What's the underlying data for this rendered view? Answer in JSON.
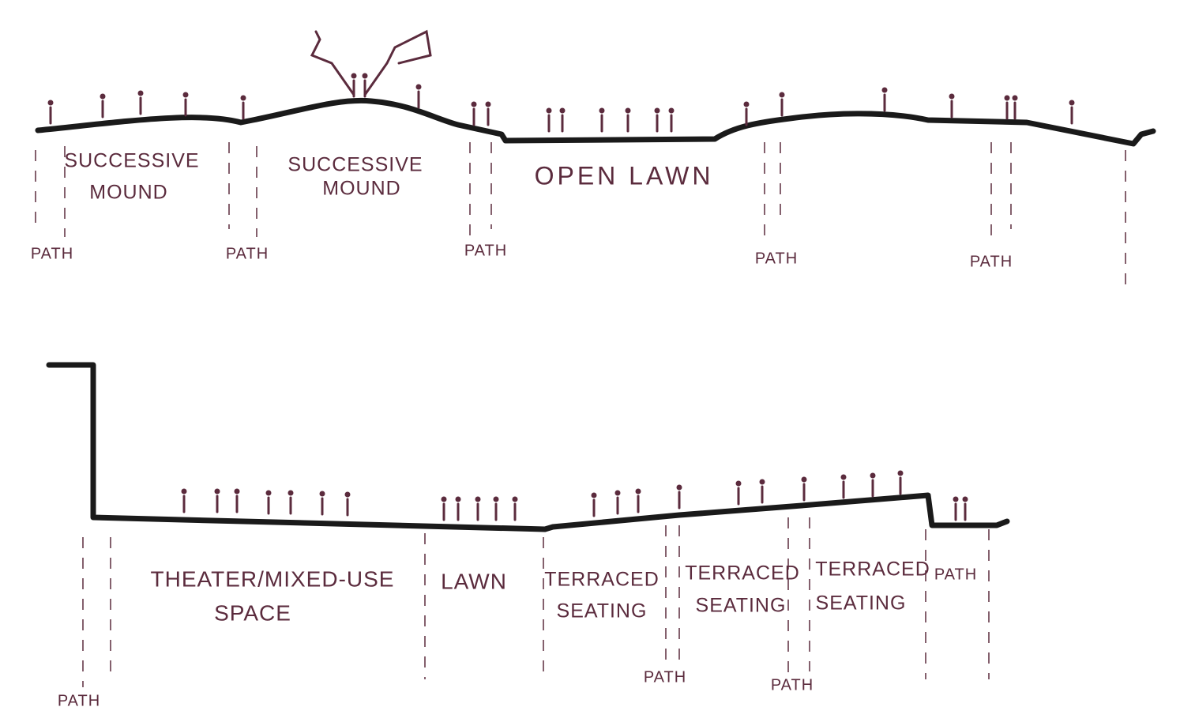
{
  "top_section": {
    "labels": [
      {
        "lines": [
          "SUCCESSIVE",
          "MOUND"
        ]
      },
      {
        "lines": [
          "SUCCESSIVE",
          "MOUND"
        ]
      },
      {
        "lines": [
          "OPEN LAWN"
        ]
      }
    ],
    "paths": [
      "PATH",
      "PATH",
      "PATH",
      "PATH",
      "PATH"
    ]
  },
  "bottom_section": {
    "labels": [
      {
        "lines": [
          "THEATER/MIXED-USE",
          "SPACE"
        ]
      },
      {
        "lines": [
          "LAWN"
        ]
      },
      {
        "lines": [
          "TERRACED",
          "SEATING"
        ]
      },
      {
        "lines": [
          "TERRACED",
          "SEATING"
        ]
      },
      {
        "lines": [
          "TERRACED",
          "SEATING"
        ]
      }
    ],
    "paths": [
      "PATH",
      "PATH",
      "PATH",
      "PATH"
    ]
  }
}
